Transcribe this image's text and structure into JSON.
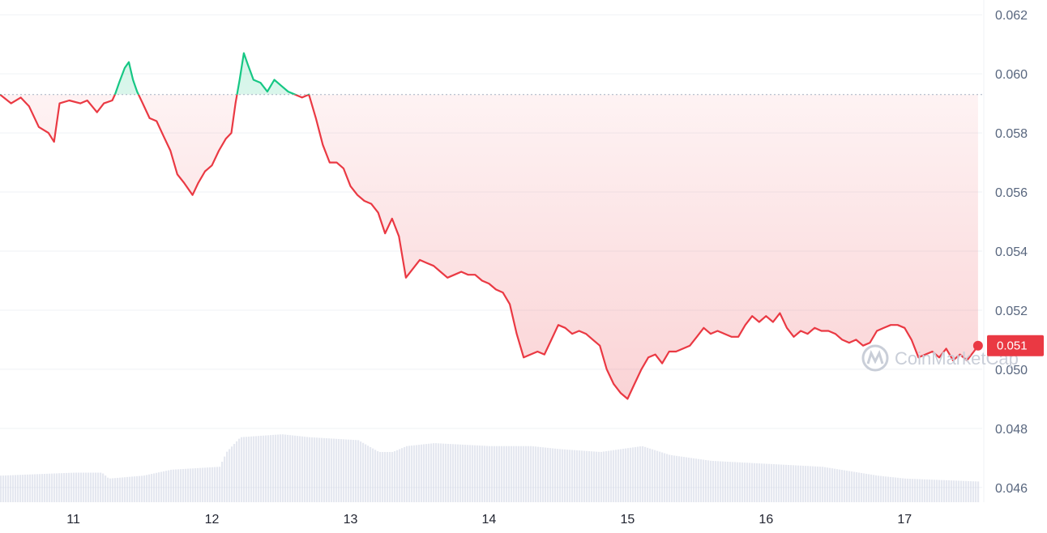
{
  "watermark": "CoinMarketCap",
  "colors": {
    "up": "#16c784",
    "down": "#ea3943",
    "grid": "#eff2f5",
    "volume": "#cfd6e4",
    "axis_text": "#58667e"
  },
  "chart_data": {
    "type": "line",
    "title": "",
    "xlabel": "",
    "ylabel": "",
    "ylim": [
      0.0455,
      0.0625
    ],
    "xlim": [
      10.47,
      17.56
    ],
    "y_ticks": [
      "0.062",
      "0.060",
      "0.058",
      "0.056",
      "0.054",
      "0.052",
      "0.050",
      "0.048",
      "0.046"
    ],
    "x_ticks": [
      "11",
      "12",
      "13",
      "14",
      "15",
      "16",
      "17"
    ],
    "reference_value": 0.0593,
    "current_price_label": "0.051",
    "current_price": 0.0508,
    "grid": true,
    "series": [
      {
        "points": [
          [
            10.47,
            0.0593
          ],
          [
            10.55,
            0.059
          ],
          [
            10.62,
            0.0592
          ],
          [
            10.68,
            0.0589
          ],
          [
            10.75,
            0.0582
          ],
          [
            10.82,
            0.058
          ],
          [
            10.86,
            0.0577
          ],
          [
            10.9,
            0.059
          ],
          [
            10.97,
            0.0591
          ],
          [
            11.05,
            0.059
          ],
          [
            11.1,
            0.0591
          ],
          [
            11.17,
            0.0587
          ],
          [
            11.22,
            0.059
          ],
          [
            11.28,
            0.0591
          ],
          [
            11.3,
            0.0593
          ],
          [
            11.33,
            0.0597
          ],
          [
            11.37,
            0.0602
          ],
          [
            11.4,
            0.0604
          ],
          [
            11.43,
            0.0598
          ],
          [
            11.46,
            0.0594
          ],
          [
            11.5,
            0.059
          ],
          [
            11.55,
            0.0585
          ],
          [
            11.6,
            0.0584
          ],
          [
            11.65,
            0.0579
          ],
          [
            11.7,
            0.0574
          ],
          [
            11.75,
            0.0566
          ],
          [
            11.8,
            0.0563
          ],
          [
            11.86,
            0.0559
          ],
          [
            11.9,
            0.0563
          ],
          [
            11.95,
            0.0567
          ],
          [
            12.0,
            0.0569
          ],
          [
            12.05,
            0.0574
          ],
          [
            12.1,
            0.0578
          ],
          [
            12.14,
            0.058
          ],
          [
            12.17,
            0.059
          ],
          [
            12.2,
            0.0598
          ],
          [
            12.23,
            0.0607
          ],
          [
            12.26,
            0.0603
          ],
          [
            12.3,
            0.0598
          ],
          [
            12.35,
            0.0597
          ],
          [
            12.4,
            0.0594
          ],
          [
            12.45,
            0.0598
          ],
          [
            12.5,
            0.0596
          ],
          [
            12.55,
            0.0594
          ],
          [
            12.6,
            0.0593
          ],
          [
            12.65,
            0.0592
          ],
          [
            12.7,
            0.0593
          ],
          [
            12.75,
            0.0585
          ],
          [
            12.8,
            0.0576
          ],
          [
            12.85,
            0.057
          ],
          [
            12.9,
            0.057
          ],
          [
            12.95,
            0.0568
          ],
          [
            13.0,
            0.0562
          ],
          [
            13.05,
            0.0559
          ],
          [
            13.1,
            0.0557
          ],
          [
            13.15,
            0.0556
          ],
          [
            13.2,
            0.0553
          ],
          [
            13.25,
            0.0546
          ],
          [
            13.3,
            0.0551
          ],
          [
            13.35,
            0.0545
          ],
          [
            13.4,
            0.0531
          ],
          [
            13.45,
            0.0534
          ],
          [
            13.5,
            0.0537
          ],
          [
            13.55,
            0.0536
          ],
          [
            13.6,
            0.0535
          ],
          [
            13.65,
            0.0533
          ],
          [
            13.7,
            0.0531
          ],
          [
            13.75,
            0.0532
          ],
          [
            13.8,
            0.0533
          ],
          [
            13.85,
            0.0532
          ],
          [
            13.9,
            0.0532
          ],
          [
            13.95,
            0.053
          ],
          [
            14.0,
            0.0529
          ],
          [
            14.05,
            0.0527
          ],
          [
            14.1,
            0.0526
          ],
          [
            14.15,
            0.0522
          ],
          [
            14.2,
            0.0512
          ],
          [
            14.25,
            0.0504
          ],
          [
            14.3,
            0.0505
          ],
          [
            14.35,
            0.0506
          ],
          [
            14.4,
            0.0505
          ],
          [
            14.45,
            0.051
          ],
          [
            14.5,
            0.0515
          ],
          [
            14.55,
            0.0514
          ],
          [
            14.6,
            0.0512
          ],
          [
            14.65,
            0.0513
          ],
          [
            14.7,
            0.0512
          ],
          [
            14.75,
            0.051
          ],
          [
            14.8,
            0.0508
          ],
          [
            14.85,
            0.05
          ],
          [
            14.9,
            0.0495
          ],
          [
            14.95,
            0.0492
          ],
          [
            15.0,
            0.049
          ],
          [
            15.05,
            0.0495
          ],
          [
            15.1,
            0.05
          ],
          [
            15.15,
            0.0504
          ],
          [
            15.2,
            0.0505
          ],
          [
            15.25,
            0.0502
          ],
          [
            15.3,
            0.0506
          ],
          [
            15.35,
            0.0506
          ],
          [
            15.4,
            0.0507
          ],
          [
            15.45,
            0.0508
          ],
          [
            15.5,
            0.0511
          ],
          [
            15.55,
            0.0514
          ],
          [
            15.6,
            0.0512
          ],
          [
            15.65,
            0.0513
          ],
          [
            15.7,
            0.0512
          ],
          [
            15.75,
            0.0511
          ],
          [
            15.8,
            0.0511
          ],
          [
            15.85,
            0.0515
          ],
          [
            15.9,
            0.0518
          ],
          [
            15.95,
            0.0516
          ],
          [
            16.0,
            0.0518
          ],
          [
            16.05,
            0.0516
          ],
          [
            16.1,
            0.0519
          ],
          [
            16.15,
            0.0514
          ],
          [
            16.2,
            0.0511
          ],
          [
            16.25,
            0.0513
          ],
          [
            16.3,
            0.0512
          ],
          [
            16.35,
            0.0514
          ],
          [
            16.4,
            0.0513
          ],
          [
            16.45,
            0.0513
          ],
          [
            16.5,
            0.0512
          ],
          [
            16.55,
            0.051
          ],
          [
            16.6,
            0.0509
          ],
          [
            16.65,
            0.051
          ],
          [
            16.7,
            0.0508
          ],
          [
            16.75,
            0.0509
          ],
          [
            16.8,
            0.0513
          ],
          [
            16.85,
            0.0514
          ],
          [
            16.9,
            0.0515
          ],
          [
            16.95,
            0.0515
          ],
          [
            17.0,
            0.0514
          ],
          [
            17.05,
            0.051
          ],
          [
            17.1,
            0.0504
          ],
          [
            17.15,
            0.0505
          ],
          [
            17.2,
            0.0506
          ],
          [
            17.25,
            0.0504
          ],
          [
            17.3,
            0.0507
          ],
          [
            17.35,
            0.0503
          ],
          [
            17.4,
            0.0505
          ],
          [
            17.45,
            0.0503
          ],
          [
            17.5,
            0.0506
          ],
          [
            17.53,
            0.0508
          ]
        ]
      }
    ],
    "volume": [
      [
        10.47,
        0.0464
      ],
      [
        11.0,
        0.0465
      ],
      [
        11.2,
        0.0465
      ],
      [
        11.25,
        0.0463
      ],
      [
        11.5,
        0.0464
      ],
      [
        11.7,
        0.0466
      ],
      [
        12.05,
        0.0467
      ],
      [
        12.1,
        0.0472
      ],
      [
        12.2,
        0.0477
      ],
      [
        12.5,
        0.0478
      ],
      [
        12.7,
        0.0477
      ],
      [
        13.05,
        0.0476
      ],
      [
        13.2,
        0.0472
      ],
      [
        13.3,
        0.0472
      ],
      [
        13.4,
        0.0474
      ],
      [
        13.6,
        0.0475
      ],
      [
        14.0,
        0.0474
      ],
      [
        14.3,
        0.0474
      ],
      [
        14.5,
        0.0473
      ],
      [
        14.8,
        0.0472
      ],
      [
        15.1,
        0.0474
      ],
      [
        15.3,
        0.0471
      ],
      [
        15.6,
        0.0469
      ],
      [
        16.0,
        0.0468
      ],
      [
        16.4,
        0.0467
      ],
      [
        16.8,
        0.0464
      ],
      [
        17.0,
        0.0463
      ],
      [
        17.53,
        0.0462
      ]
    ]
  }
}
